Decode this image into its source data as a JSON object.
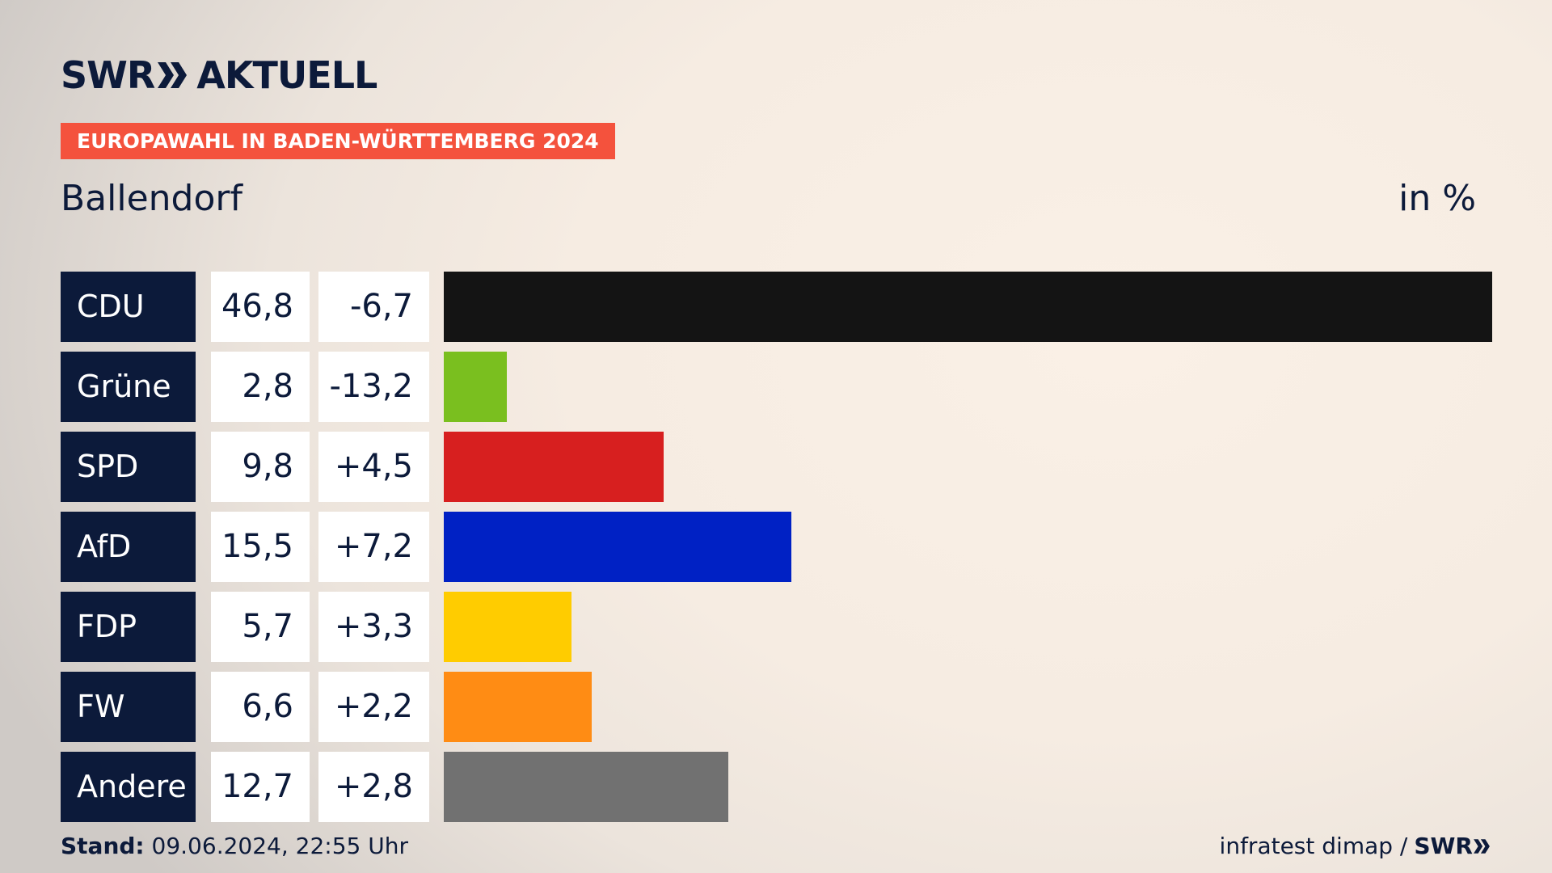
{
  "header": {
    "logo_left": "SWR",
    "logo_right": "AKTUELL",
    "badge": "EUROPAWAHL IN BADEN-WÜRTTEMBERG 2024",
    "location": "Ballendorf",
    "unit": "in %"
  },
  "chart_data": {
    "type": "bar",
    "orientation": "horizontal",
    "categories": [
      "CDU",
      "Grüne",
      "SPD",
      "AfD",
      "FDP",
      "FW",
      "Andere"
    ],
    "values": [
      46.8,
      2.8,
      9.8,
      15.5,
      5.7,
      6.6,
      12.7
    ],
    "value_labels": [
      "46,8",
      "2,8",
      "9,8",
      "15,5",
      "5,7",
      "6,6",
      "12,7"
    ],
    "diff_labels": [
      "-6,7",
      "-13,2",
      "+4,5",
      "+7,2",
      "+3,3",
      "+2,2",
      "+2,8"
    ],
    "colors": [
      "#141414",
      "#7abf1f",
      "#d71f1f",
      "#0021c4",
      "#ffcc00",
      "#ff8c14",
      "#717171"
    ],
    "xlim": [
      0,
      46.8
    ]
  },
  "footer": {
    "stand_label": "Stand:",
    "stand_value": "09.06.2024, 22:55 Uhr",
    "source": "infratest dimap /",
    "source_logo": "SWR"
  }
}
